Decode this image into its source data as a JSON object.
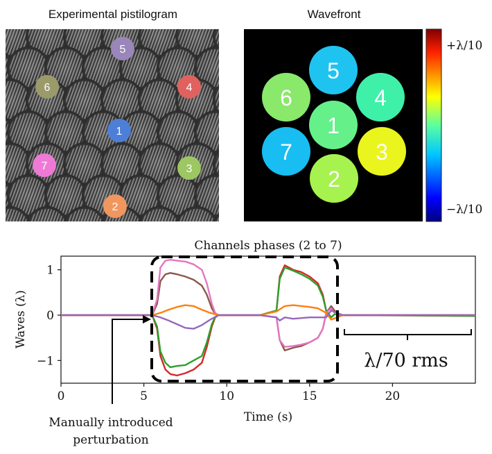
{
  "panels": {
    "pistilogram": {
      "title": "Experimental pistilogram"
    },
    "wavefront": {
      "title": "Wavefront",
      "colorbar": {
        "max_label": "+λ/10",
        "min_label": "−λ/10"
      }
    }
  },
  "markers": [
    {
      "label": "1",
      "color": "#4d7fd8"
    },
    {
      "label": "2",
      "color": "#f2965f"
    },
    {
      "label": "3",
      "color": "#9cc762"
    },
    {
      "label": "4",
      "color": "#e0615e"
    },
    {
      "label": "5",
      "color": "#9a86b8"
    },
    {
      "label": "6",
      "color": "#9b9a6a"
    },
    {
      "label": "7",
      "color": "#ef7ad6"
    }
  ],
  "segments": [
    {
      "label": "1",
      "color": "#66f08a"
    },
    {
      "label": "2",
      "color": "#a6f24e"
    },
    {
      "label": "3",
      "color": "#e9f51c"
    },
    {
      "label": "4",
      "color": "#3ef0a8"
    },
    {
      "label": "5",
      "color": "#1fc3f0"
    },
    {
      "label": "6",
      "color": "#8ae86a"
    },
    {
      "label": "7",
      "color": "#18bdf2"
    }
  ],
  "annotations": {
    "rms": "λ/70 rms",
    "perturbation_line1": "Manually introduced",
    "perturbation_line2": "perturbation"
  },
  "chart_data": {
    "type": "line",
    "title": "Channels phases (2 to 7)",
    "xlabel": "Time (s)",
    "ylabel": "Waves (λ)",
    "xlim": [
      0,
      25
    ],
    "ylim": [
      -1.5,
      1.3
    ],
    "xticks": [
      0,
      5,
      10,
      15,
      20
    ],
    "yticks": [
      -1,
      0,
      1
    ],
    "grid": false,
    "series": [
      {
        "color": "#d62728",
        "x": [
          0,
          5.5,
          5.8,
          6,
          6.3,
          6.6,
          7,
          7.5,
          8,
          8.5,
          8.8,
          9.1,
          9.3,
          9.5,
          12,
          13,
          13.2,
          13.5,
          14,
          14.5,
          15,
          15.5,
          15.8,
          16,
          16.3,
          16.5,
          16.8,
          17,
          25
        ],
        "y": [
          0,
          0,
          -0.3,
          -0.9,
          -1.2,
          -1.3,
          -1.33,
          -1.28,
          -1.2,
          -1.05,
          -0.7,
          -0.25,
          -0.05,
          0,
          0,
          0.1,
          0.85,
          1.1,
          1.0,
          0.95,
          0.85,
          0.7,
          0.45,
          0.1,
          -0.05,
          0.02,
          0.02,
          0,
          0
        ]
      },
      {
        "color": "#2ca02c",
        "x": [
          0,
          5.5,
          5.8,
          6,
          6.3,
          6.6,
          7,
          7.5,
          8,
          8.5,
          8.8,
          9.1,
          9.3,
          9.5,
          12,
          13,
          13.2,
          13.5,
          14,
          14.5,
          15,
          15.5,
          15.8,
          16,
          16.3,
          16.5,
          16.8,
          17,
          25
        ],
        "y": [
          0,
          0,
          -0.25,
          -0.8,
          -1.05,
          -1.15,
          -1.12,
          -1.1,
          -1.0,
          -0.9,
          -0.6,
          -0.2,
          -0.04,
          0,
          0,
          0.1,
          0.8,
          1.05,
          0.98,
          0.9,
          0.8,
          0.65,
          0.4,
          0.1,
          -0.05,
          0.02,
          0,
          0,
          -0.02
        ]
      },
      {
        "color": "#8c564b",
        "x": [
          0,
          5.5,
          5.8,
          6,
          6.3,
          6.6,
          7,
          7.5,
          8,
          8.5,
          8.8,
          9.1,
          9.3,
          9.5,
          12,
          13,
          13.2,
          13.5,
          14,
          14.5,
          15,
          15.5,
          15.8,
          16,
          16.3,
          16.5,
          16.8,
          17,
          25
        ],
        "y": [
          0,
          0,
          0.25,
          0.75,
          0.9,
          0.93,
          0.9,
          0.85,
          0.78,
          0.65,
          0.45,
          0.15,
          0.03,
          0,
          0,
          -0.05,
          -0.55,
          -0.78,
          -0.72,
          -0.68,
          -0.6,
          -0.5,
          -0.3,
          0.05,
          0.2,
          0.1,
          0.02,
          0,
          0
        ]
      },
      {
        "color": "#e377c2",
        "x": [
          0,
          5.5,
          5.8,
          6,
          6.3,
          6.6,
          7,
          7.5,
          8,
          8.5,
          8.8,
          9.1,
          9.3,
          9.5,
          12,
          13,
          13.2,
          13.5,
          14,
          14.5,
          15,
          15.5,
          15.8,
          16,
          16.3,
          16.5,
          16.8,
          17,
          25
        ],
        "y": [
          0,
          0,
          0.35,
          1.05,
          1.2,
          1.22,
          1.2,
          1.18,
          1.12,
          1.0,
          0.7,
          0.25,
          0.05,
          0,
          0,
          -0.05,
          -0.55,
          -0.7,
          -0.68,
          -0.65,
          -0.6,
          -0.5,
          -0.3,
          0.05,
          0.15,
          0.05,
          0.02,
          0,
          0
        ]
      },
      {
        "color": "#ff7f0e",
        "x": [
          0,
          5.5,
          6,
          6.5,
          7,
          7.5,
          8,
          8.5,
          9,
          9.5,
          12,
          13,
          13.5,
          14,
          15,
          15.5,
          16,
          16.3,
          17,
          25
        ],
        "y": [
          0,
          0,
          0.05,
          0.12,
          0.18,
          0.22,
          0.2,
          0.12,
          0.05,
          0,
          0,
          0.08,
          0.2,
          0.22,
          0.18,
          0.15,
          0.05,
          -0.1,
          0,
          0
        ]
      },
      {
        "color": "#9467bd",
        "x": [
          0,
          5.5,
          6,
          6.5,
          7,
          7.5,
          8,
          8.5,
          9,
          9.5,
          12,
          13,
          13.2,
          13.5,
          14,
          15,
          16,
          16.3,
          17,
          25
        ],
        "y": [
          0,
          0,
          -0.05,
          -0.12,
          -0.2,
          -0.28,
          -0.3,
          -0.22,
          -0.1,
          0,
          0,
          -0.05,
          -0.12,
          -0.05,
          -0.08,
          -0.05,
          -0.05,
          0.1,
          0,
          0
        ]
      }
    ]
  }
}
